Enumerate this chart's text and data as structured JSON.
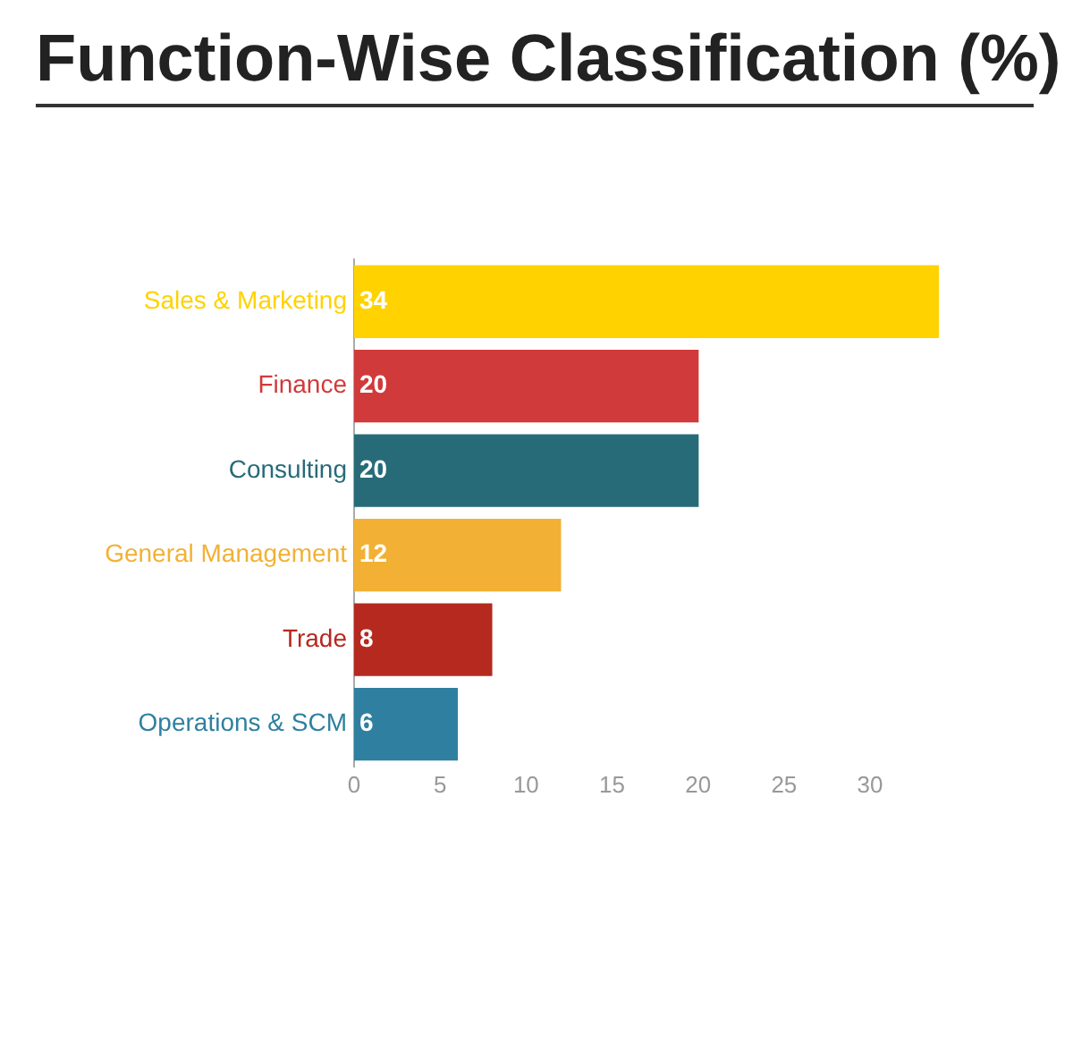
{
  "chart_data": {
    "type": "bar",
    "orientation": "horizontal",
    "title": "Function-Wise Classification (%)",
    "categories": [
      "Sales & Marketing",
      "Finance",
      "Consulting",
      "General Management",
      "Trade",
      "Operations & SCM"
    ],
    "values": [
      34,
      20,
      20,
      12,
      8,
      6
    ],
    "colors": [
      "#ffd200",
      "#d13a3a",
      "#276b78",
      "#f2b134",
      "#b5291f",
      "#2f80a0"
    ],
    "xlim": [
      0,
      34
    ],
    "xticks": [
      0,
      5,
      10,
      15,
      20,
      25,
      30
    ],
    "data_labels": true,
    "grid": false,
    "legend": false
  }
}
